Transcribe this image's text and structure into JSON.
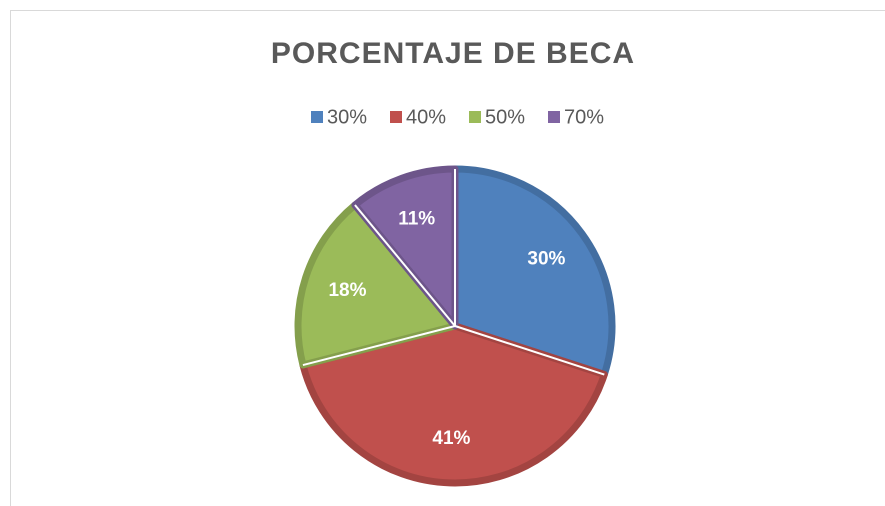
{
  "chart_data": {
    "type": "pie",
    "title": "PORCENTAJE DE BECA",
    "categories": [
      "30%",
      "40%",
      "50%",
      "70%"
    ],
    "values": [
      30,
      41,
      18,
      11
    ],
    "value_labels": [
      "30%",
      "41%",
      "18%",
      "11%"
    ],
    "colors": [
      "#4f81bd",
      "#c0504d",
      "#9bbb59",
      "#8064a2"
    ],
    "legend": "top"
  }
}
